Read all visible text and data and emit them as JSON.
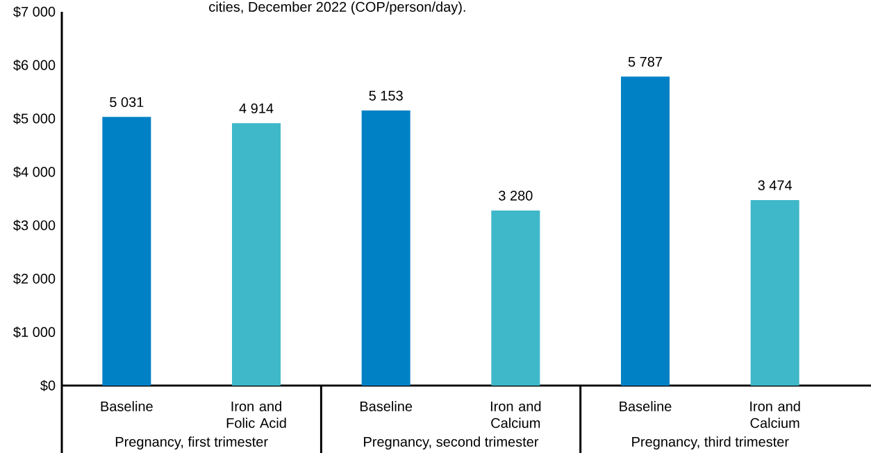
{
  "chart_data": {
    "type": "bar",
    "title": "cities, December 2022 (COP/person/day).",
    "categories": [
      "Baseline",
      "Iron and Folic Acid",
      "Baseline",
      "Iron and Calcium",
      "Baseline",
      "Iron and Calcium"
    ],
    "values": [
      5031,
      4914,
      5153,
      3280,
      5787,
      3474
    ],
    "colors": [
      "#0081c6",
      "#3fb8c9",
      "#0081c6",
      "#3fb8c9",
      "#0081c6",
      "#3fb8c9"
    ],
    "value_labels": [
      "5 031",
      "4 914",
      "5 153",
      "3 280",
      "5 787",
      "3 474"
    ],
    "ylim": [
      0,
      7000
    ],
    "yticks": [
      {
        "value": 0,
        "label": "$0"
      },
      {
        "value": 1000,
        "label": "$1 000"
      },
      {
        "value": 2000,
        "label": "$2 000"
      },
      {
        "value": 3000,
        "label": "$3 000"
      },
      {
        "value": 4000,
        "label": "$4 000"
      },
      {
        "value": 5000,
        "label": "$5 000"
      },
      {
        "value": 6000,
        "label": "$6 000"
      },
      {
        "value": 7000,
        "label": "$7 000"
      }
    ],
    "annotations": [
      "Pregnancy, first trimester",
      "Pregnancy, second trimester",
      "Pregnancy, third trimester"
    ]
  }
}
